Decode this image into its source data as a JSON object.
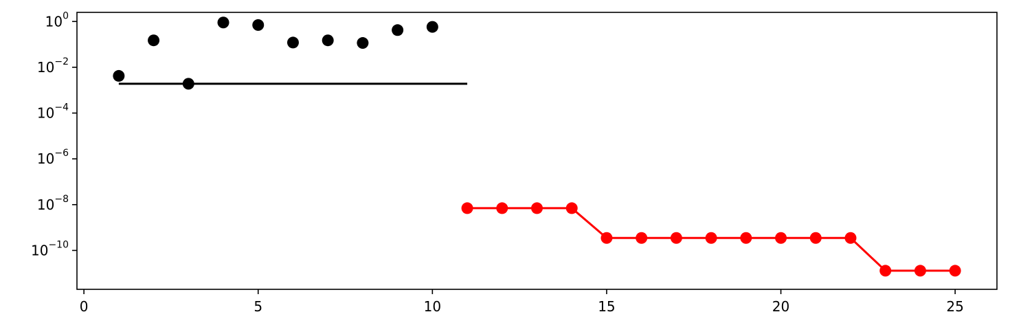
{
  "chart_data": {
    "type": "scatter",
    "yscale": "log",
    "xlim": [
      -0.2,
      26.2
    ],
    "ylim": [
      2e-12,
      2.5
    ],
    "x_ticks": [
      0,
      5,
      10,
      15,
      20,
      25
    ],
    "y_ticks": [
      {
        "value": 1,
        "base": "10",
        "exp": "0"
      },
      {
        "value": 0.01,
        "base": "10",
        "exp": "−2"
      },
      {
        "value": 0.0001,
        "base": "10",
        "exp": "−4"
      },
      {
        "value": 1e-06,
        "base": "10",
        "exp": "−6"
      },
      {
        "value": 1e-08,
        "base": "10",
        "exp": "−8"
      },
      {
        "value": 1e-10,
        "base": "10",
        "exp": "−10"
      }
    ],
    "grid": false,
    "legend": "none",
    "title": "",
    "xlabel": "",
    "ylabel": "",
    "series": [
      {
        "style": "markers",
        "color": "#000000",
        "x": [
          1,
          2,
          3,
          4,
          5,
          6,
          7,
          8,
          9,
          10
        ],
        "y": [
          0.0042,
          0.15,
          0.0019,
          0.9,
          0.7,
          0.12,
          0.15,
          0.115,
          0.42,
          0.58
        ]
      },
      {
        "style": "line",
        "color": "#000000",
        "x": [
          1,
          11
        ],
        "y": [
          0.0019,
          0.0019
        ]
      },
      {
        "style": "line+markers",
        "color": "#ff0000",
        "x": [
          11,
          12,
          13,
          14,
          15,
          16,
          17,
          18,
          19,
          20,
          21,
          22,
          23,
          24,
          25
        ],
        "y": [
          7e-09,
          7e-09,
          7e-09,
          7e-09,
          3.5e-10,
          3.5e-10,
          3.5e-10,
          3.5e-10,
          3.5e-10,
          3.5e-10,
          3.5e-10,
          3.5e-10,
          1.3e-11,
          1.3e-11,
          1.3e-11
        ]
      }
    ]
  }
}
